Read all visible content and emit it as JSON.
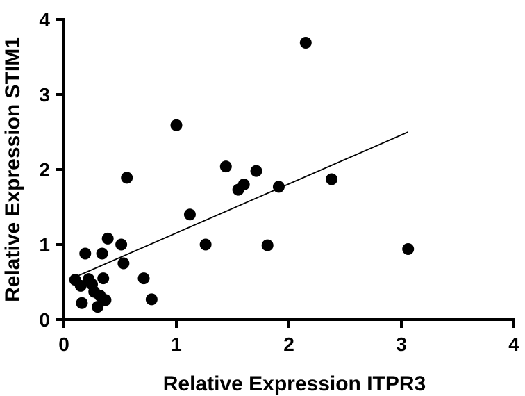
{
  "chart_data": {
    "type": "scatter",
    "title": "",
    "xlabel": "Relative Expression ITPR3",
    "ylabel": "Relative Expression STIM1",
    "xlim": [
      0,
      4
    ],
    "ylim": [
      0,
      4
    ],
    "xticks": [
      "0",
      "1",
      "2",
      "3",
      "4"
    ],
    "yticks": [
      "0",
      "1",
      "2",
      "3",
      "4"
    ],
    "grid": false,
    "legend": "none",
    "point_color": "#000000",
    "points": [
      {
        "x": 0.1,
        "y": 0.53
      },
      {
        "x": 0.15,
        "y": 0.45
      },
      {
        "x": 0.16,
        "y": 0.22
      },
      {
        "x": 0.19,
        "y": 0.88
      },
      {
        "x": 0.22,
        "y": 0.54
      },
      {
        "x": 0.25,
        "y": 0.47
      },
      {
        "x": 0.27,
        "y": 0.37
      },
      {
        "x": 0.3,
        "y": 0.17
      },
      {
        "x": 0.32,
        "y": 0.32
      },
      {
        "x": 0.34,
        "y": 0.88
      },
      {
        "x": 0.35,
        "y": 0.55
      },
      {
        "x": 0.37,
        "y": 0.26
      },
      {
        "x": 0.39,
        "y": 1.08
      },
      {
        "x": 0.51,
        "y": 1.0
      },
      {
        "x": 0.53,
        "y": 0.75
      },
      {
        "x": 0.56,
        "y": 1.89
      },
      {
        "x": 0.71,
        "y": 0.55
      },
      {
        "x": 0.78,
        "y": 0.27
      },
      {
        "x": 1.0,
        "y": 2.59
      },
      {
        "x": 1.12,
        "y": 1.4
      },
      {
        "x": 1.26,
        "y": 1.0
      },
      {
        "x": 1.44,
        "y": 2.04
      },
      {
        "x": 1.55,
        "y": 1.73
      },
      {
        "x": 1.6,
        "y": 1.8
      },
      {
        "x": 1.71,
        "y": 1.98
      },
      {
        "x": 1.81,
        "y": 0.99
      },
      {
        "x": 1.91,
        "y": 1.77
      },
      {
        "x": 2.15,
        "y": 3.69
      },
      {
        "x": 2.38,
        "y": 1.87
      },
      {
        "x": 3.06,
        "y": 0.94
      }
    ],
    "trendline": {
      "x": [
        0.12,
        3.06
      ],
      "y": [
        0.58,
        2.5
      ]
    }
  }
}
